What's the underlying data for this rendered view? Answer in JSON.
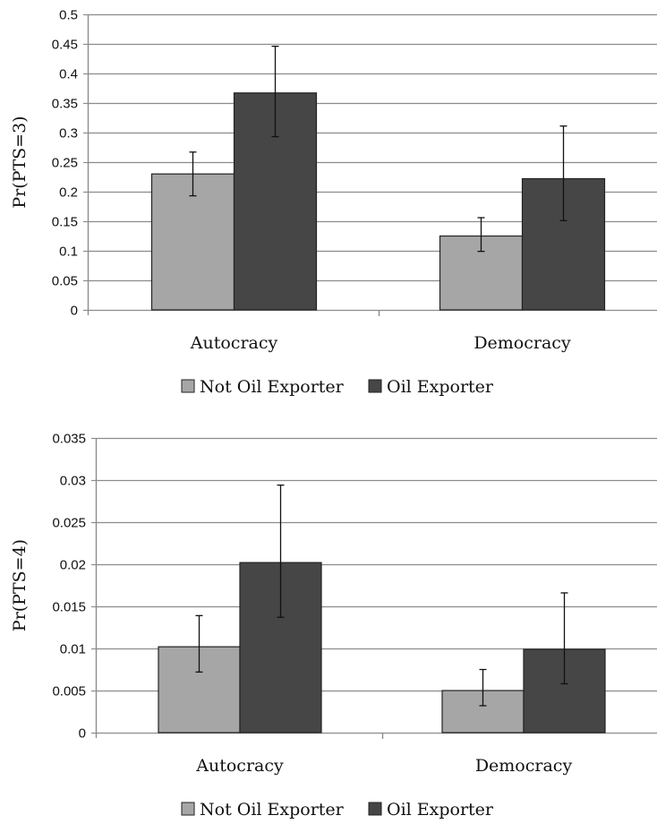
{
  "colors": {
    "not_oil": "#a6a6a6",
    "oil": "#464646",
    "grid": "#8c8c8c",
    "axis": "#8c8c8c"
  },
  "chart_data": [
    {
      "type": "bar",
      "categories": [
        "Autocracy",
        "Democracy"
      ],
      "ylabel": "Pr(PTS=3)",
      "ylim": [
        0,
        0.5
      ],
      "yticks": [
        "0",
        "0.05",
        "0.1",
        "0.15",
        "0.2",
        "0.25",
        "0.3",
        "0.35",
        "0.4",
        "0.45",
        "0.5"
      ],
      "grid": true,
      "legend_position": "bottom",
      "series": [
        {
          "name": "Not Oil Exporter",
          "values": [
            0.23,
            0.125
          ],
          "err_low": [
            0.193,
            0.099
          ],
          "err_high": [
            0.267,
            0.156
          ]
        },
        {
          "name": "Oil Exporter",
          "values": [
            0.367,
            0.222
          ],
          "err_low": [
            0.293,
            0.151
          ],
          "err_high": [
            0.446,
            0.311
          ]
        }
      ]
    },
    {
      "type": "bar",
      "categories": [
        "Autocracy",
        "Democracy"
      ],
      "ylabel": "Pr(PTS=4)",
      "ylim": [
        0,
        0.035
      ],
      "yticks": [
        "0",
        "0.005",
        "0.01",
        "0.015",
        "0.02",
        "0.025",
        "0.03",
        "0.035"
      ],
      "grid": true,
      "legend_position": "bottom",
      "series": [
        {
          "name": "Not Oil Exporter",
          "values": [
            0.0102,
            0.005
          ],
          "err_low": [
            0.0072,
            0.0032
          ],
          "err_high": [
            0.0139,
            0.0075
          ]
        },
        {
          "name": "Oil Exporter",
          "values": [
            0.0202,
            0.0099
          ],
          "err_low": [
            0.0137,
            0.0058
          ],
          "err_high": [
            0.0294,
            0.0166
          ]
        }
      ]
    }
  ]
}
